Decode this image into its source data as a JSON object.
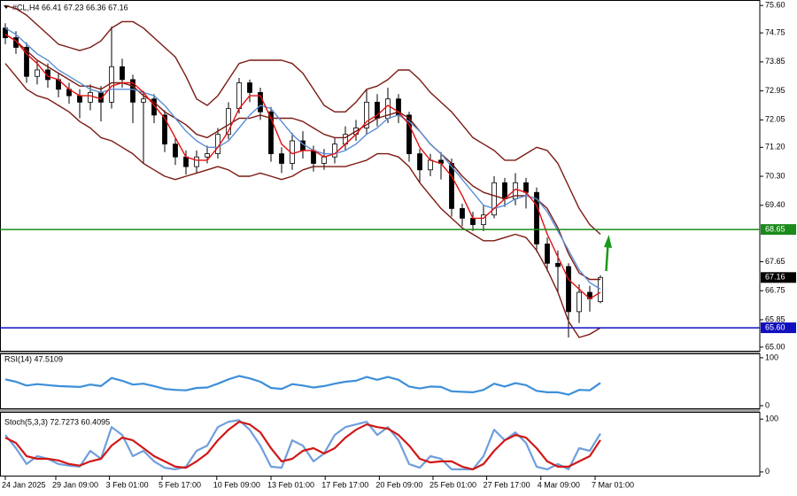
{
  "chart_data": [
    {
      "type": "candlestick",
      "title": "#CL,H4 66.41 67.23 66.36 67.16",
      "x": [
        0,
        1,
        2,
        3,
        4,
        5,
        6,
        7,
        8,
        9,
        10,
        11,
        12,
        13,
        14,
        15,
        16,
        17,
        18,
        19,
        20,
        21,
        22,
        23,
        24,
        25,
        26,
        27,
        28,
        29,
        30,
        31,
        32,
        33,
        34,
        35,
        36,
        37,
        38,
        39,
        40,
        41,
        42,
        43,
        44,
        45,
        46,
        47,
        48,
        49,
        50,
        51,
        52,
        53,
        54,
        55,
        56
      ],
      "open": [
        74.9,
        74.6,
        74.3,
        73.4,
        73.6,
        73.3,
        73.0,
        72.8,
        72.6,
        72.9,
        72.6,
        73.7,
        73.3,
        72.6,
        72.7,
        72.2,
        71.3,
        70.9,
        70.6,
        70.9,
        71.0,
        71.6,
        72.4,
        73.2,
        72.9,
        72.3,
        71.0,
        70.7,
        71.4,
        71.1,
        70.7,
        70.9,
        71.3,
        71.6,
        71.8,
        72.6,
        72.1,
        72.7,
        72.2,
        71.0,
        70.5,
        70.8,
        70.7,
        69.3,
        69.0,
        68.8,
        69.1,
        70.1,
        69.6,
        70.1,
        69.8,
        68.2,
        67.6,
        67.5,
        66.1,
        66.7,
        66.41
      ],
      "high": [
        75.05,
        74.8,
        74.45,
        73.9,
        73.8,
        73.5,
        73.2,
        73.0,
        73.15,
        73.1,
        74.95,
        73.95,
        73.45,
        72.95,
        72.85,
        72.35,
        71.5,
        71.1,
        71.1,
        71.25,
        71.8,
        72.6,
        73.35,
        73.3,
        73.05,
        72.45,
        71.2,
        71.65,
        71.7,
        71.25,
        71.15,
        71.5,
        71.85,
        72.05,
        73.0,
        72.85,
        73.05,
        72.85,
        72.3,
        71.15,
        71.0,
        71.05,
        70.85,
        69.45,
        69.2,
        69.4,
        70.3,
        70.25,
        70.4,
        70.25,
        69.95,
        68.4,
        68.0,
        67.6,
        66.95,
        66.9,
        67.23
      ],
      "low": [
        74.4,
        74.1,
        73.2,
        73.15,
        73.05,
        72.75,
        72.55,
        72.1,
        72.35,
        72.0,
        72.4,
        73.05,
        71.95,
        70.7,
        71.95,
        71.05,
        70.65,
        70.35,
        70.4,
        70.7,
        70.85,
        71.45,
        72.25,
        72.6,
        72.05,
        70.75,
        70.4,
        70.5,
        70.85,
        70.45,
        70.5,
        70.7,
        71.1,
        71.4,
        71.6,
        71.85,
        71.95,
        71.95,
        70.75,
        70.1,
        70.3,
        70.2,
        69.05,
        68.75,
        68.6,
        68.6,
        69.0,
        69.35,
        69.4,
        69.3,
        67.95,
        67.35,
        66.7,
        65.3,
        65.75,
        66.1,
        66.36
      ],
      "close": [
        74.6,
        74.3,
        73.4,
        73.6,
        73.3,
        73.0,
        72.8,
        72.6,
        72.9,
        72.6,
        73.7,
        73.3,
        72.6,
        72.7,
        72.2,
        71.3,
        70.9,
        70.6,
        70.9,
        71.0,
        71.6,
        72.4,
        73.2,
        72.9,
        72.3,
        71.0,
        70.7,
        71.4,
        71.1,
        70.7,
        70.9,
        71.3,
        71.6,
        71.8,
        72.6,
        72.1,
        72.7,
        72.2,
        71.0,
        70.5,
        70.8,
        70.7,
        69.3,
        69.0,
        68.8,
        69.1,
        70.1,
        69.6,
        70.1,
        69.8,
        68.2,
        67.6,
        67.5,
        66.1,
        66.7,
        66.5,
        67.16
      ],
      "series": [
        {
          "color": "#7a1a12",
          "values": [
            75.6,
            75.5,
            75.3,
            75.0,
            74.7,
            74.4,
            74.3,
            74.2,
            74.3,
            74.5,
            74.9,
            75.1,
            75.1,
            74.9,
            74.6,
            74.3,
            74.0,
            73.4,
            72.7,
            72.5,
            72.8,
            73.3,
            73.8,
            73.9,
            73.9,
            73.9,
            73.9,
            73.8,
            73.5,
            73.0,
            72.5,
            72.3,
            72.3,
            72.6,
            73.0,
            73.1,
            73.3,
            73.6,
            73.6,
            73.3,
            72.9,
            72.6,
            72.3,
            71.9,
            71.5,
            71.3,
            71.1,
            70.8,
            70.8,
            71.0,
            71.2,
            71.1,
            70.7,
            70.0,
            69.3,
            68.8,
            68.5
          ]
        },
        {
          "color": "#7a1a12",
          "values": [
            74.7,
            74.5,
            74.2,
            73.9,
            73.7,
            73.5,
            73.3,
            73.1,
            73.1,
            73.0,
            73.2,
            73.2,
            73.1,
            72.8,
            72.6,
            72.3,
            72.1,
            71.9,
            71.6,
            71.5,
            71.7,
            71.9,
            72.1,
            72.1,
            72.2,
            72.1,
            72.1,
            72.1,
            72.0,
            71.8,
            71.6,
            71.5,
            71.5,
            71.7,
            71.9,
            72.1,
            72.2,
            72.3,
            72.1,
            71.7,
            71.3,
            71.0,
            70.7,
            70.3,
            70.0,
            69.8,
            69.7,
            69.6,
            69.7,
            69.7,
            69.6,
            69.3,
            68.7,
            67.9,
            67.3,
            67.1,
            67.1
          ]
        },
        {
          "color": "#7a1a12",
          "values": [
            73.8,
            73.4,
            73.0,
            72.8,
            72.7,
            72.5,
            72.3,
            72.0,
            71.8,
            71.5,
            71.4,
            71.2,
            71.0,
            70.7,
            70.5,
            70.3,
            70.2,
            70.3,
            70.4,
            70.5,
            70.6,
            70.5,
            70.3,
            70.3,
            70.4,
            70.3,
            70.2,
            70.3,
            70.5,
            70.6,
            70.6,
            70.6,
            70.6,
            70.7,
            70.8,
            71.0,
            71.0,
            70.9,
            70.6,
            70.1,
            69.7,
            69.3,
            69.0,
            68.7,
            68.5,
            68.3,
            68.3,
            68.4,
            68.5,
            68.4,
            68.0,
            67.4,
            66.7,
            65.8,
            65.3,
            65.4,
            65.6
          ]
        },
        {
          "color": "#5b8fd6",
          "values": [
            74.9,
            74.7,
            74.4,
            74.1,
            73.9,
            73.6,
            73.4,
            73.2,
            73.0,
            72.9,
            73.0,
            73.0,
            73.0,
            72.9,
            72.8,
            72.5,
            72.1,
            71.7,
            71.4,
            71.2,
            71.2,
            71.4,
            71.8,
            72.2,
            72.5,
            72.4,
            72.0,
            71.6,
            71.3,
            71.1,
            71.0,
            71.0,
            71.1,
            71.3,
            71.6,
            71.8,
            72.1,
            72.2,
            72.0,
            71.7,
            71.3,
            71.0,
            70.6,
            70.2,
            69.8,
            69.4,
            69.3,
            69.4,
            69.6,
            69.7,
            69.6,
            69.2,
            68.6,
            68.0,
            67.4,
            67.0,
            66.8
          ]
        },
        {
          "color": "#e01010",
          "values": [
            74.7,
            74.5,
            74.1,
            73.8,
            73.4,
            73.3,
            73.0,
            72.8,
            72.8,
            72.7,
            73.1,
            73.2,
            73.2,
            72.9,
            72.5,
            72.1,
            71.5,
            70.9,
            70.8,
            70.8,
            71.2,
            71.7,
            72.4,
            72.8,
            72.8,
            72.1,
            71.3,
            71.0,
            71.1,
            71.1,
            70.9,
            71.0,
            71.3,
            71.6,
            72.0,
            72.2,
            72.5,
            72.3,
            71.9,
            71.2,
            70.8,
            70.7,
            70.3,
            69.7,
            69.0,
            69.0,
            69.3,
            69.6,
            69.9,
            69.8,
            69.4,
            68.5,
            67.8,
            67.1,
            66.8,
            66.5,
            66.7
          ]
        }
      ],
      "xlim": [
        0,
        71
      ],
      "xticks": [
        {
          "value": 0,
          "label": "24 Jan 2025"
        },
        {
          "value": 4.75,
          "label": "29 Jan 09:00"
        },
        {
          "value": 9.8,
          "label": "3 Feb 01:00"
        },
        {
          "value": 14.75,
          "label": "5 Feb 17:00"
        },
        {
          "value": 19.9,
          "label": "10 Feb 09:00"
        },
        {
          "value": 25,
          "label": "13 Feb 01:00"
        },
        {
          "value": 30.1,
          "label": "17 Feb 17:00"
        },
        {
          "value": 35.2,
          "label": "20 Feb 09:00"
        },
        {
          "value": 40.25,
          "label": "25 Feb 01:00"
        },
        {
          "value": 45.3,
          "label": "27 Feb 17:00"
        },
        {
          "value": 50.4,
          "label": "4 Mar 09:00"
        },
        {
          "value": 55.5,
          "label": "7 Mar 01:00"
        }
      ],
      "ylim": [
        64.86,
        75.77
      ],
      "yticks": [
        {
          "value": 75.6,
          "label": "75.60"
        },
        74.75,
        73.85,
        72.95,
        72.05,
        {
          "value": 71.2,
          "label": "71.20"
        },
        {
          "value": 70.3,
          "label": "70.30"
        },
        {
          "value": 69.4,
          "label": "69.40"
        },
        67.65,
        66.75,
        65.85,
        {
          "value": 65,
          "label": "65.00"
        }
      ],
      "hlines": [
        {
          "value": 68.65,
          "color": "#1a8a1a"
        },
        {
          "value": {
            "value": 65.6,
            "label": "65.60"
          },
          "color": "#1010c0"
        }
      ],
      "last": 67.16
    },
    {
      "type": "line",
      "title": "RSI(14) 47.5109",
      "series": [
        {
          "color": "#3d8fd9",
          "values": [
            55,
            50,
            42,
            45,
            43,
            41,
            40,
            39,
            44,
            41,
            58,
            52,
            44,
            46,
            41,
            35,
            33,
            32,
            37,
            38,
            46,
            55,
            62,
            57,
            50,
            37,
            35,
            45,
            42,
            38,
            41,
            46,
            50,
            52,
            60,
            54,
            60,
            54,
            40,
            36,
            40,
            39,
            30,
            29,
            28,
            33,
            46,
            40,
            47,
            43,
            31,
            28,
            28,
            23,
            33,
            32,
            47.5109
          ]
        }
      ],
      "ylim": [
        -7.3,
        109.1
      ],
      "yticks": [
        100,
        0
      ]
    },
    {
      "type": "line",
      "title": "Stoch(5,3,3) 72.7273 60.4095",
      "series": [
        {
          "color": "#6f9fdc",
          "values": [
            70,
            45,
            15,
            30,
            25,
            15,
            12,
            10,
            40,
            25,
            85,
            70,
            30,
            40,
            20,
            8,
            5,
            10,
            40,
            50,
            85,
            95,
            98,
            80,
            50,
            10,
            8,
            60,
            50,
            20,
            35,
            70,
            85,
            90,
            95,
            70,
            85,
            60,
            15,
            8,
            30,
            25,
            5,
            5,
            5,
            30,
            80,
            60,
            75,
            55,
            10,
            5,
            15,
            5,
            45,
            40,
            72.7273
          ]
        },
        {
          "color": "#d01818",
          "values": [
            65,
            55,
            30,
            25,
            25,
            22,
            15,
            12,
            20,
            25,
            50,
            65,
            60,
            45,
            30,
            20,
            10,
            8,
            20,
            35,
            60,
            80,
            95,
            90,
            75,
            45,
            20,
            25,
            40,
            45,
            35,
            45,
            65,
            80,
            90,
            85,
            82,
            70,
            50,
            25,
            18,
            20,
            20,
            10,
            5,
            15,
            40,
            60,
            70,
            65,
            45,
            20,
            10,
            10,
            20,
            30,
            60.4095
          ]
        }
      ],
      "ylim": [
        -8.6,
        113.8
      ],
      "yticks": [
        100,
        0
      ]
    }
  ]
}
